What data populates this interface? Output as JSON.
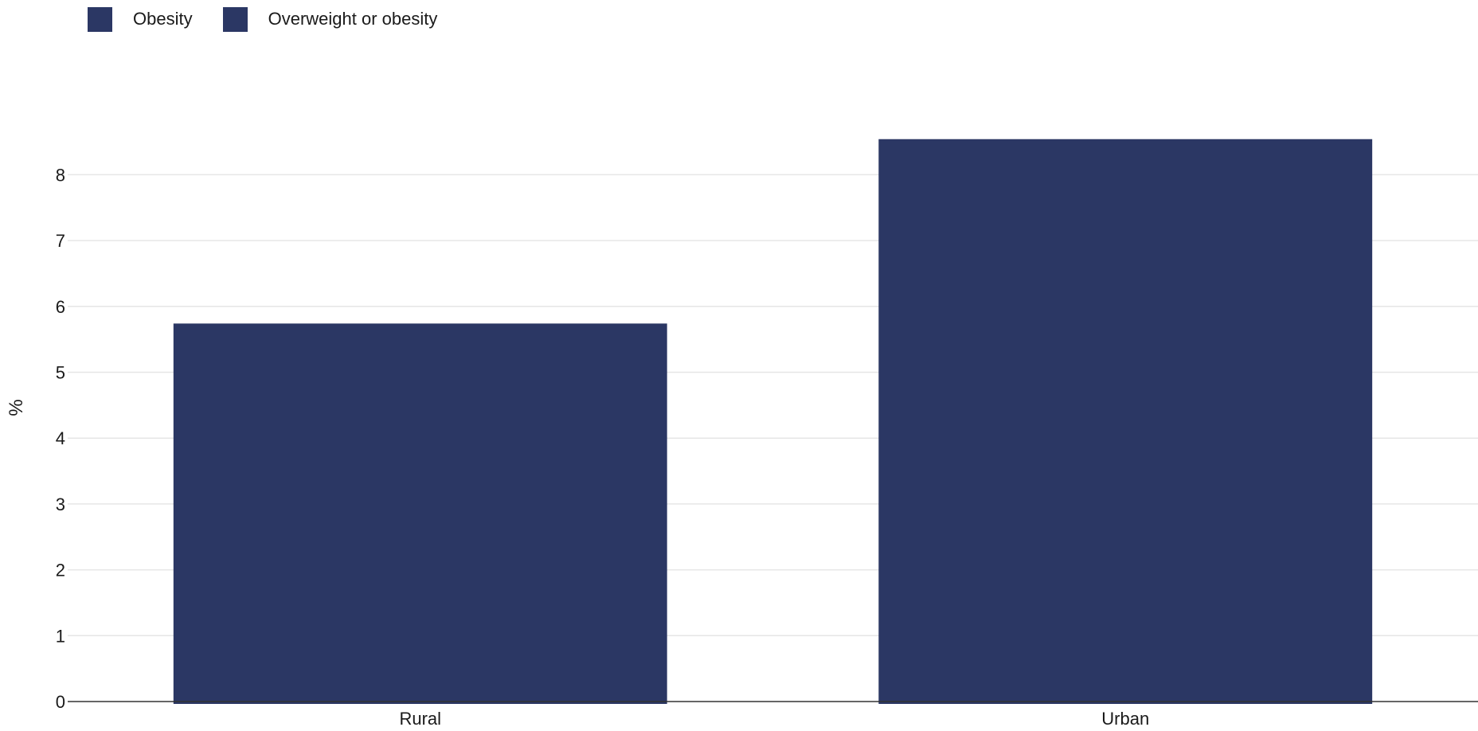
{
  "chart_data": {
    "type": "bar",
    "categories": [
      "Rural",
      "Urban"
    ],
    "series": [
      {
        "name": "Obesity",
        "values": [
          5.74,
          8.54
        ]
      }
    ],
    "legend": [
      "Obesity",
      "Overweight or obesity"
    ],
    "legend_placement": "top-left",
    "title": "",
    "xlabel": "",
    "ylabel": "%",
    "yticks": [
      "0",
      "1",
      "2",
      "3",
      "4",
      "5",
      "6",
      "7",
      "8"
    ],
    "ylim": [
      0,
      9
    ],
    "grid": true,
    "colors": {
      "bar": "#2b3764",
      "grid": "#e6e6e6",
      "axis": "#333333"
    }
  }
}
